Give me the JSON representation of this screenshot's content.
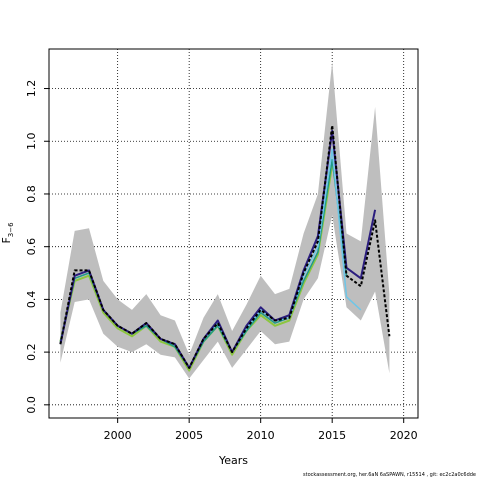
{
  "chart_data": {
    "type": "line",
    "xlabel": "Years",
    "ylabel_main": "F",
    "ylabel_sub": "3−6",
    "xlim": [
      1995.2,
      2021.0
    ],
    "ylim": [
      -0.05,
      1.35
    ],
    "xticks": [
      2000,
      2005,
      2010,
      2015,
      2020
    ],
    "yticks": [
      0.0,
      0.2,
      0.4,
      0.6,
      0.8,
      1.0,
      1.2
    ],
    "ytick_labels": [
      "0.0",
      "0.2",
      "0.4",
      "0.6",
      "0.8",
      "1.0",
      "1.2"
    ],
    "grid": "dotted",
    "confidence_band": {
      "x": [
        1996,
        1997,
        1998,
        1999,
        2000,
        2001,
        2002,
        2003,
        2004,
        2005,
        2006,
        2007,
        2008,
        2009,
        2010,
        2011,
        2012,
        2013,
        2014,
        2015,
        2016,
        2017,
        2018,
        2019
      ],
      "upper": [
        0.35,
        0.66,
        0.67,
        0.47,
        0.4,
        0.36,
        0.42,
        0.34,
        0.32,
        0.19,
        0.33,
        0.42,
        0.28,
        0.38,
        0.49,
        0.42,
        0.44,
        0.65,
        0.8,
        1.3,
        0.65,
        0.62,
        1.13,
        0.42
      ],
      "lower": [
        0.16,
        0.39,
        0.4,
        0.27,
        0.22,
        0.2,
        0.23,
        0.19,
        0.18,
        0.1,
        0.17,
        0.24,
        0.14,
        0.21,
        0.28,
        0.23,
        0.24,
        0.4,
        0.48,
        0.72,
        0.37,
        0.32,
        0.43,
        0.12
      ],
      "color": "#bebebe"
    },
    "series": [
      {
        "x": [
          1996,
          1997,
          1998,
          1999,
          2000,
          2001,
          2002,
          2003,
          2004,
          2005,
          2006,
          2007,
          2008,
          2009,
          2010,
          2011,
          2012,
          2013,
          2014,
          2015,
          2016,
          2017,
          2018,
          2019
        ],
        "values": [
          0.23,
          0.51,
          0.51,
          0.36,
          0.3,
          0.27,
          0.31,
          0.25,
          0.23,
          0.14,
          0.25,
          0.31,
          0.2,
          0.29,
          0.36,
          0.32,
          0.33,
          0.5,
          0.62,
          1.06,
          0.49,
          0.45,
          0.7,
          0.26
        ],
        "color": "#000000",
        "dash": "3,2",
        "width": 2
      },
      {
        "x": [
          1996,
          1997,
          1998,
          1999,
          2000,
          2001,
          2002,
          2003,
          2004,
          2005,
          2006,
          2007,
          2008,
          2009,
          2010,
          2011,
          2012,
          2013,
          2014,
          2015,
          2016,
          2017,
          2018
        ],
        "values": [
          0.23,
          0.49,
          0.51,
          0.36,
          0.3,
          0.27,
          0.31,
          0.25,
          0.23,
          0.14,
          0.25,
          0.32,
          0.2,
          0.3,
          0.37,
          0.32,
          0.34,
          0.51,
          0.64,
          1.04,
          0.52,
          0.48,
          0.74
        ],
        "color": "#2b1d7e",
        "dash": "",
        "width": 2
      },
      {
        "x": [
          1996,
          1997,
          1998,
          1999,
          2000,
          2001,
          2002,
          2003,
          2004,
          2005,
          2006,
          2007,
          2008,
          2009,
          2010,
          2011,
          2012,
          2013,
          2014,
          2015,
          2016,
          2017
        ],
        "values": [
          0.23,
          0.49,
          0.51,
          0.36,
          0.3,
          0.27,
          0.31,
          0.25,
          0.23,
          0.14,
          0.25,
          0.31,
          0.2,
          0.29,
          0.36,
          0.32,
          0.33,
          0.49,
          0.6,
          0.97,
          0.41,
          0.36
        ],
        "color": "#6ec6e8",
        "dash": "",
        "width": 1.5
      },
      {
        "x": [
          1996,
          1997,
          1998,
          1999,
          2000,
          2001,
          2002,
          2003,
          2004,
          2005,
          2006,
          2007,
          2008,
          2009,
          2010,
          2011,
          2012,
          2013,
          2014,
          2015,
          2016
        ],
        "values": [
          0.24,
          0.48,
          0.5,
          0.36,
          0.3,
          0.27,
          0.3,
          0.25,
          0.22,
          0.14,
          0.24,
          0.3,
          0.2,
          0.28,
          0.35,
          0.31,
          0.33,
          0.47,
          0.58,
          0.93,
          0.49
        ],
        "color": "#1f9a8a",
        "dash": "",
        "width": 1.5
      },
      {
        "x": [
          1996,
          1997,
          1998,
          1999,
          2000,
          2001,
          2002,
          2003,
          2004,
          2005,
          2006,
          2007,
          2008,
          2009,
          2010,
          2011,
          2012,
          2013,
          2014,
          2015
        ],
        "values": [
          0.24,
          0.47,
          0.49,
          0.35,
          0.29,
          0.26,
          0.3,
          0.24,
          0.22,
          0.13,
          0.24,
          0.3,
          0.19,
          0.28,
          0.34,
          0.3,
          0.32,
          0.46,
          0.57,
          0.91
        ],
        "color": "#8cc63f",
        "dash": "",
        "width": 2
      }
    ]
  },
  "footer": {
    "text": "stockassessment.org, her.6aN  6aSPAWN, r15514 ,  git: ec2c2a0c6dde"
  }
}
